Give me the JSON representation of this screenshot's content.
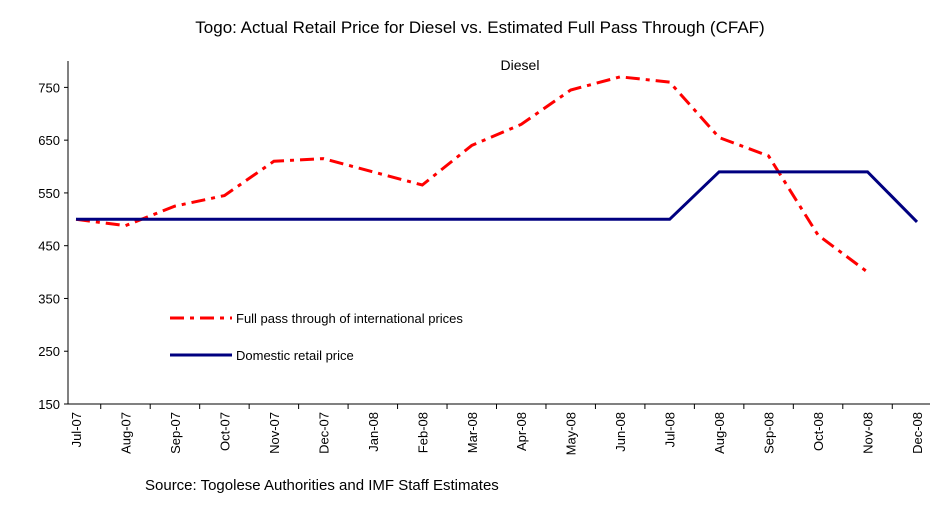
{
  "chart_data": {
    "type": "line",
    "title": "Togo: Actual Retail Price for Diesel vs. Estimated Full Pass Through (CFAF)",
    "subtitle": "Diesel",
    "source": "Source: Togolese Authorities and IMF Staff Estimates",
    "categories": [
      "Jul-07",
      "Aug-07",
      "Sep-07",
      "Oct-07",
      "Nov-07",
      "Dec-07",
      "Jan-08",
      "Feb-08",
      "Mar-08",
      "Apr-08",
      "May-08",
      "Jun-08",
      "Jul-08",
      "Aug-08",
      "Sep-08",
      "Oct-08",
      "Nov-08",
      "Dec-08"
    ],
    "series": [
      {
        "name": "Full pass through of international prices",
        "color": "#ff0000",
        "dash": true,
        "values": [
          500,
          488,
          525,
          545,
          610,
          615,
          590,
          565,
          640,
          680,
          745,
          770,
          760,
          655,
          620,
          470,
          400,
          null
        ]
      },
      {
        "name": "Domestic retail price",
        "color": "#000080",
        "dash": false,
        "values": [
          500,
          500,
          500,
          500,
          500,
          500,
          500,
          500,
          500,
          500,
          500,
          500,
          500,
          590,
          590,
          590,
          590,
          495
        ]
      }
    ],
    "ylim": [
      150,
      800
    ],
    "yticks": [
      150,
      250,
      350,
      450,
      550,
      650,
      750
    ],
    "legend": "inside-left"
  }
}
